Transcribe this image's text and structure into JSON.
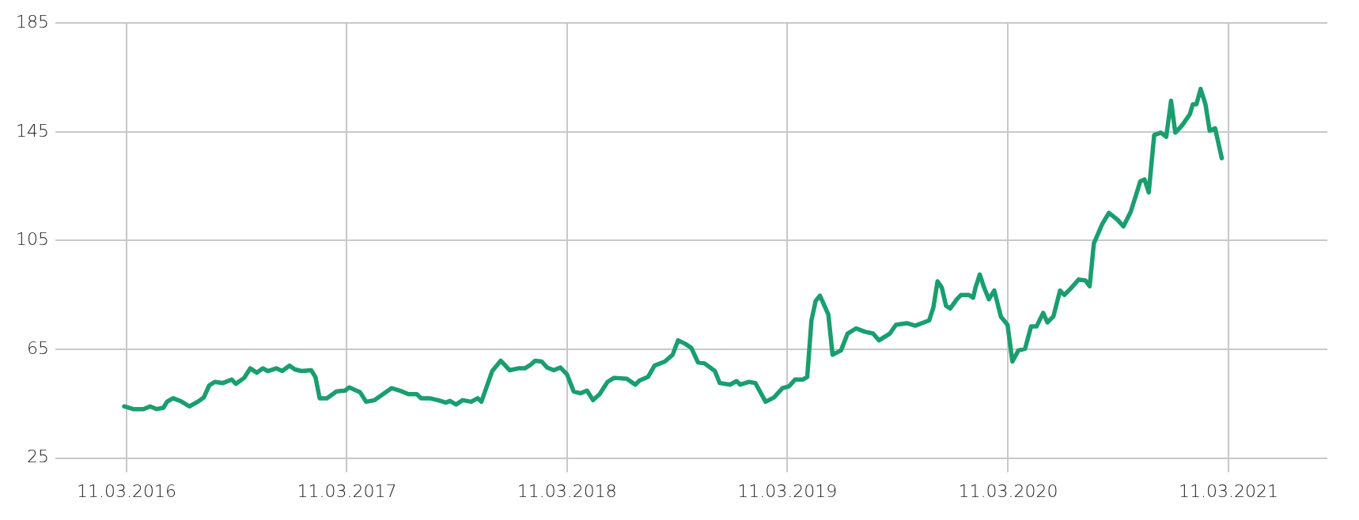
{
  "chart_data": {
    "type": "line",
    "x": [
      "2016-03-07",
      "2016-03-22",
      "2016-04-08",
      "2016-04-19",
      "2016-04-30",
      "2016-05-11",
      "2016-05-17",
      "2016-05-27",
      "2016-06-10",
      "2016-06-23",
      "2016-07-07",
      "2016-07-17",
      "2016-07-26",
      "2016-08-04",
      "2016-08-18",
      "2016-09-01",
      "2016-09-08",
      "2016-09-22",
      "2016-10-02",
      "2016-10-13",
      "2016-10-23",
      "2016-10-31",
      "2016-11-14",
      "2016-11-24",
      "2016-12-06",
      "2016-12-15",
      "2016-12-26",
      "2017-01-11",
      "2017-01-18",
      "2017-01-25",
      "2017-02-06",
      "2017-02-22",
      "2017-03-08",
      "2017-03-15",
      "2017-04-02",
      "2017-04-12",
      "2017-04-26",
      "2017-05-10",
      "2017-05-24",
      "2017-06-07",
      "2017-06-21",
      "2017-07-05",
      "2017-07-12",
      "2017-07-26",
      "2017-08-09",
      "2017-08-22",
      "2017-08-29",
      "2017-09-08",
      "2017-09-19",
      "2017-10-03",
      "2017-10-14",
      "2017-10-20",
      "2017-10-31",
      "2017-11-07",
      "2017-11-21",
      "2017-12-06",
      "2017-12-20",
      "2017-12-31",
      "2018-01-09",
      "2018-01-17",
      "2018-01-28",
      "2018-02-06",
      "2018-02-17",
      "2018-02-28",
      "2018-03-11",
      "2018-03-22",
      "2018-04-02",
      "2018-04-13",
      "2018-04-23",
      "2018-05-04",
      "2018-05-17",
      "2018-05-28",
      "2018-06-18",
      "2018-07-02",
      "2018-07-09",
      "2018-07-23",
      "2018-08-03",
      "2018-08-20",
      "2018-09-02",
      "2018-09-11",
      "2018-09-23",
      "2018-10-03",
      "2018-10-14",
      "2018-10-25",
      "2018-11-11",
      "2018-11-19",
      "2018-12-06",
      "2018-12-17",
      "2018-12-23",
      "2019-01-06",
      "2019-01-17",
      "2019-02-03",
      "2019-02-17",
      "2019-03-03",
      "2019-03-14",
      "2019-03-24",
      "2019-04-06",
      "2019-04-13",
      "2019-04-20",
      "2019-04-27",
      "2019-05-04",
      "2019-05-18",
      "2019-05-25",
      "2019-06-08",
      "2019-06-19",
      "2019-07-03",
      "2019-07-17",
      "2019-07-31",
      "2019-08-10",
      "2019-08-28",
      "2019-09-07",
      "2019-09-25",
      "2019-10-09",
      "2019-11-01",
      "2019-11-08",
      "2019-11-15",
      "2019-11-22",
      "2019-11-29",
      "2019-12-06",
      "2019-12-17",
      "2019-12-24",
      "2020-01-06",
      "2020-01-13",
      "2020-01-17",
      "2020-01-24",
      "2020-01-31",
      "2020-02-08",
      "2020-02-17",
      "2020-02-28",
      "2020-03-10",
      "2020-03-18",
      "2020-03-28",
      "2020-04-08",
      "2020-04-18",
      "2020-04-27",
      "2020-05-08",
      "2020-05-15",
      "2020-05-25",
      "2020-06-05",
      "2020-06-12",
      "2020-06-22",
      "2020-07-06",
      "2020-07-17",
      "2020-07-24",
      "2020-07-31",
      "2020-08-14",
      "2020-08-25",
      "2020-09-08",
      "2020-09-18",
      "2020-09-30",
      "2020-10-09",
      "2020-10-16",
      "2020-10-23",
      "2020-10-30",
      "2020-11-08",
      "2020-11-19",
      "2020-11-28",
      "2020-12-06",
      "2020-12-13",
      "2020-12-24",
      "2021-01-06",
      "2021-01-11",
      "2021-01-17",
      "2021-01-24",
      "2021-02-01",
      "2021-02-08",
      "2021-02-17",
      "2021-02-28"
    ],
    "series": [
      {
        "color": "#1a9e6e",
        "values": [
          44,
          43,
          43,
          44,
          43,
          43.5,
          45.7,
          47,
          45.8,
          44,
          45.7,
          47.3,
          51.7,
          53,
          52.6,
          53.9,
          52.3,
          54.5,
          58,
          56.4,
          58,
          57,
          58,
          57,
          59,
          57.6,
          57,
          57.3,
          54.8,
          47,
          47,
          49.5,
          49.8,
          51,
          49.2,
          45.7,
          46.3,
          48.5,
          50.7,
          49.8,
          48.5,
          48.5,
          47,
          47,
          46.3,
          45.4,
          46,
          44.7,
          46.3,
          45.7,
          47,
          45.7,
          52.6,
          57,
          60.8,
          57.3,
          58,
          58,
          59.2,
          60.8,
          60.5,
          58.3,
          57.3,
          58.3,
          55.7,
          49.5,
          48.8,
          49.8,
          46.3,
          48.5,
          53,
          54.5,
          54.2,
          52,
          53.5,
          54.8,
          59,
          60.5,
          63,
          68.3,
          67,
          65.5,
          60.2,
          59.8,
          57,
          52.6,
          52,
          53.3,
          52,
          53,
          52.6,
          45.7,
          47.3,
          50.7,
          51.4,
          53.9,
          53.9,
          54.8,
          75.6,
          82.8,
          84.7,
          77.8,
          63,
          64.6,
          70.8,
          72.7,
          71.5,
          70.8,
          68.3,
          70.8,
          74,
          74.6,
          73.7,
          75.6,
          80.3,
          90,
          87.7,
          81,
          80,
          83.4,
          85,
          85,
          84,
          87.8,
          92.5,
          87.8,
          83.4,
          86.6,
          77,
          74,
          60.5,
          64.6,
          65.2,
          73.4,
          73.4,
          78.4,
          74.9,
          77.1,
          86.6,
          85,
          87.2,
          90.7,
          90.3,
          88.2,
          103.9,
          111.1,
          115.2,
          112.7,
          110.2,
          115.5,
          121.8,
          126.8,
          127.5,
          122.7,
          143.8,
          144.7,
          143.2,
          156.4,
          144.7,
          147.3,
          151.4,
          155.1,
          155.1,
          160.8,
          155.1,
          145.4,
          146.3,
          135.3
        ]
      }
    ],
    "xlim": [
      "2015-11-14",
      "2021-08-22"
    ],
    "xticks": [
      {
        "value": "2016-03-11",
        "label": "11.03.2016"
      },
      {
        "value": "2017-03-11",
        "label": "11.03.2017"
      },
      {
        "value": "2018-03-11",
        "label": "11.03.2018"
      },
      {
        "value": "2019-03-11",
        "label": "11.03.2019"
      },
      {
        "value": "2020-03-11",
        "label": "11.03.2020"
      },
      {
        "value": "2021-03-11",
        "label": "11.03.2021"
      }
    ],
    "ylim": [
      25,
      185
    ],
    "yticks": [
      25,
      65,
      105,
      145,
      185
    ],
    "grid": true,
    "marker": "none",
    "line_style": "solid"
  }
}
